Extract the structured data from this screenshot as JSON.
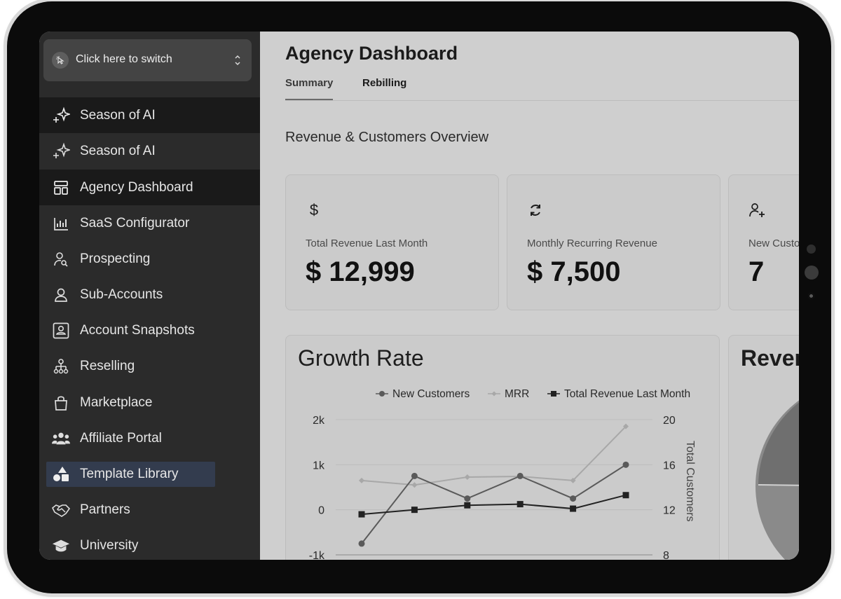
{
  "switcher": {
    "label": "Click here to switch"
  },
  "sidebar": {
    "items": [
      {
        "label": "Season of AI",
        "icon": "sparkle-icon"
      },
      {
        "label": "Season of AI",
        "icon": "sparkle-icon"
      },
      {
        "label": "Agency Dashboard",
        "icon": "dashboard-icon"
      },
      {
        "label": "SaaS Configurator",
        "icon": "bar-chart-icon"
      },
      {
        "label": "Prospecting",
        "icon": "user-search-icon"
      },
      {
        "label": "Sub-Accounts",
        "icon": "user-icon"
      },
      {
        "label": "Account Snapshots",
        "icon": "portrait-icon"
      },
      {
        "label": "Reselling",
        "icon": "network-icon"
      },
      {
        "label": "Marketplace",
        "icon": "shopping-bag-icon"
      },
      {
        "label": "Affiliate Portal",
        "icon": "users-icon"
      },
      {
        "label": "Template Library",
        "icon": "shapes-icon"
      },
      {
        "label": "Partners",
        "icon": "handshake-icon"
      },
      {
        "label": "University",
        "icon": "graduation-cap-icon"
      }
    ]
  },
  "header": {
    "title": "Agency Dashboard",
    "tabs": [
      {
        "label": "Summary"
      },
      {
        "label": "Rebilling"
      }
    ]
  },
  "overview": {
    "title": "Revenue & Customers Overview",
    "cards": [
      {
        "label": "Total Revenue Last Month",
        "value": "$ 12,999",
        "icon": "dollar-icon"
      },
      {
        "label": "Monthly Recurring Revenue",
        "value": "$ 7,500",
        "icon": "refresh-icon"
      },
      {
        "label": "New Customers",
        "value": "7",
        "icon": "user-plus-icon"
      }
    ]
  },
  "growth": {
    "title": "Growth Rate"
  },
  "revenue_card": {
    "title": "Revenue"
  },
  "colors": {
    "sidebar_bg": "#2b2b2b",
    "main_bg": "#cfcfcf",
    "highlight": "#333c4e"
  },
  "chart_data": {
    "type": "line",
    "title": "Growth Rate",
    "y2label": "Total Customers",
    "ylim": [
      -1000,
      2000
    ],
    "y2lim": [
      8,
      20
    ],
    "yticks": [
      "2k",
      "1k",
      "0",
      "-1k"
    ],
    "y2ticks": [
      "20",
      "16",
      "12",
      "8"
    ],
    "legend": "top",
    "series": [
      {
        "name": "New Customers",
        "axis": "left",
        "marker": "circle",
        "values": [
          -750,
          750,
          250,
          750,
          250,
          1000
        ]
      },
      {
        "name": "MRR",
        "axis": "left",
        "marker": "diamond",
        "values": [
          650,
          550,
          725,
          740,
          650,
          1850
        ]
      },
      {
        "name": "Total Revenue Last Month",
        "axis": "right",
        "marker": "square",
        "values": [
          11.6,
          12.0,
          12.4,
          12.5,
          12.1,
          13.3
        ]
      }
    ]
  }
}
